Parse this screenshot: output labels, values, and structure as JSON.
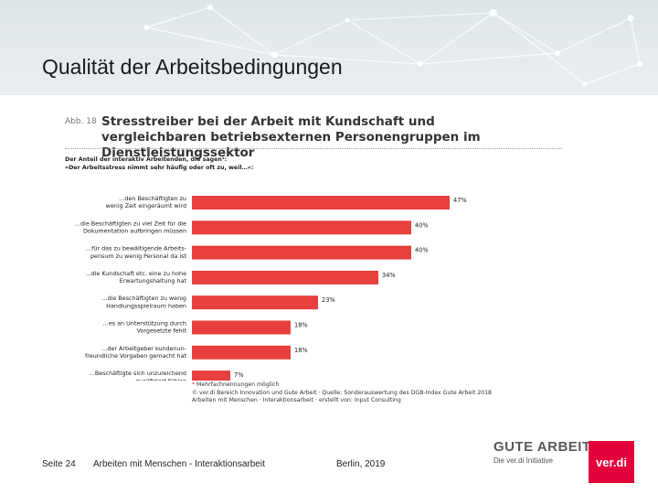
{
  "page": {
    "title": "Qualität der Arbeitsbedingungen",
    "footer": {
      "page": "Seite 24",
      "subtitle": "Arbeiten mit Menschen - Interaktionsarbeit",
      "place_date": "Berlin, 2019"
    }
  },
  "figure": {
    "label": "Abb. 18",
    "title": "Stresstreiber bei der Arbeit mit Kundschaft und vergleichbaren betriebsexternen Personengruppen im Dienstleistungssektor",
    "intro_line1": "Der Anteil der interaktiv Arbeitenden, die sagen¹:",
    "intro_line2": "»Der Arbeitsstress nimmt sehr häufig oder oft zu, weil…«:",
    "footnote_star": "*",
    "footnote1": " Mehrfachnennungen möglich",
    "footnote2": "© ver.di Bereich Innovation und Gute Arbeit · Quelle: Sonderauswertung des DGB-Index Gute Arbeit 2018",
    "footnote3": "Arbeiten mit Menschen · Interaktionsarbeit · erstellt von: Input Consulting"
  },
  "chart_data": {
    "type": "bar",
    "orientation": "horizontal",
    "categories": [
      [
        "…den Beschäftigten zu",
        "wenig Zeit eingeräumt wird"
      ],
      [
        "…die Beschäftigten zu viel Zeit für die",
        "Dokumentation aufbringen müssen"
      ],
      [
        "…für das zu bewältigende Arbeits-",
        "pensum zu wenig Personal da ist"
      ],
      [
        "…die Kundschaft etc. eine zu hohe",
        "Erwartungshaltung hat"
      ],
      [
        "…die Beschäftigten zu wenig",
        "Handlungsspielraum haben"
      ],
      [
        "…es an Unterstützung durch",
        "Vorgesetzte fehlt"
      ],
      [
        "…der Arbeitgeber kundenun-",
        "freundliche Vorgaben gemacht hat"
      ],
      [
        "…Beschäftigte sich unzureichend",
        "qualifiziert fühlen"
      ]
    ],
    "values": [
      47,
      40,
      40,
      34,
      23,
      18,
      18,
      7
    ],
    "value_labels": [
      "47%",
      "40%",
      "40%",
      "34%",
      "23%",
      "18%",
      "18%",
      "7%"
    ],
    "xlim": [
      0,
      50
    ],
    "bar_color": "#e8403f",
    "grid": false,
    "legend": "none"
  },
  "brand": {
    "gute_arbeit": "GUTE ARBEIT",
    "gute_arbeit_sub": "Die ver.di Initiative",
    "verdi": "ver.di",
    "verdi_color": "#e4003a"
  }
}
